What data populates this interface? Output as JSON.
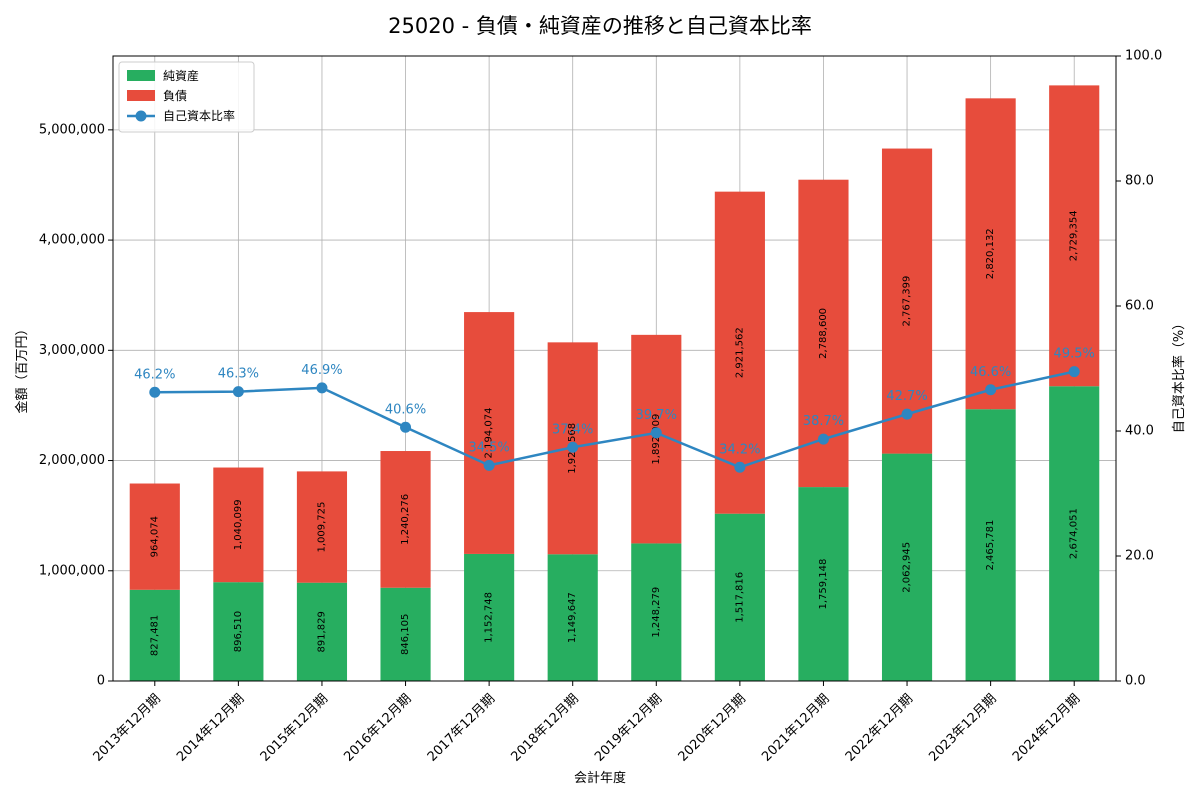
{
  "chart_data": {
    "type": "bar",
    "stacked": true,
    "title": "25020 - 負債・純資産の推移と自己資本比率",
    "xlabel": "会計年度",
    "ylabel": "金額（百万円）",
    "y2label": "自己資本比率（%）",
    "ylim": [
      0,
      5670000
    ],
    "y2lim": [
      0,
      100
    ],
    "grid": true,
    "legend_position": "top-left",
    "categories": [
      "2013年12月期",
      "2014年12月期",
      "2015年12月期",
      "2016年12月期",
      "2017年12月期",
      "2018年12月期",
      "2019年12月期",
      "2020年12月期",
      "2021年12月期",
      "2022年12月期",
      "2023年12月期",
      "2024年12月期"
    ],
    "yticks": [
      0,
      1000000,
      2000000,
      3000000,
      4000000,
      5000000
    ],
    "ytick_labels": [
      "0",
      "1,000,000",
      "2,000,000",
      "3,000,000",
      "4,000,000",
      "5,000,000"
    ],
    "y2ticks": [
      0,
      20,
      40,
      60,
      80,
      100
    ],
    "y2tick_labels": [
      "0.0",
      "20.0",
      "40.0",
      "60.0",
      "80.0",
      "100.0"
    ],
    "series": [
      {
        "name": "純資産",
        "color": "#27ae60",
        "values": [
          827481,
          896510,
          891829,
          846105,
          1152748,
          1149647,
          1248279,
          1517816,
          1759148,
          2062945,
          2465781,
          2674051
        ],
        "labels": [
          "827,481",
          "896,510",
          "891,829",
          "846,105",
          "1,152,748",
          "1,149,647",
          "1,248,279",
          "1,517,816",
          "1,759,148",
          "2,062,945",
          "2,465,781",
          "2,674,051"
        ]
      },
      {
        "name": "負債",
        "color": "#e74c3c",
        "values": [
          964074,
          1040099,
          1009725,
          1240276,
          2194074,
          1922568,
          1892009,
          2921562,
          2788600,
          2767399,
          2820132,
          2729354
        ],
        "labels": [
          "964,074",
          "1,040,099",
          "1,009,725",
          "1,240,276",
          "2,194,074",
          "1,922,568",
          "1,892,009",
          "2,921,562",
          "2,788,600",
          "2,767,399",
          "2,820,132",
          "2,729,354"
        ]
      }
    ],
    "line_series": {
      "name": "自己資本比率",
      "color": "#2e86c1",
      "values": [
        46.2,
        46.3,
        46.9,
        40.6,
        34.5,
        37.4,
        39.7,
        34.2,
        38.7,
        42.7,
        46.6,
        49.5
      ],
      "labels": [
        "46.2%",
        "46.3%",
        "46.9%",
        "40.6%",
        "34.5%",
        "37.4%",
        "39.7%",
        "34.2%",
        "38.7%",
        "42.7%",
        "46.6%",
        "49.5%"
      ]
    }
  }
}
